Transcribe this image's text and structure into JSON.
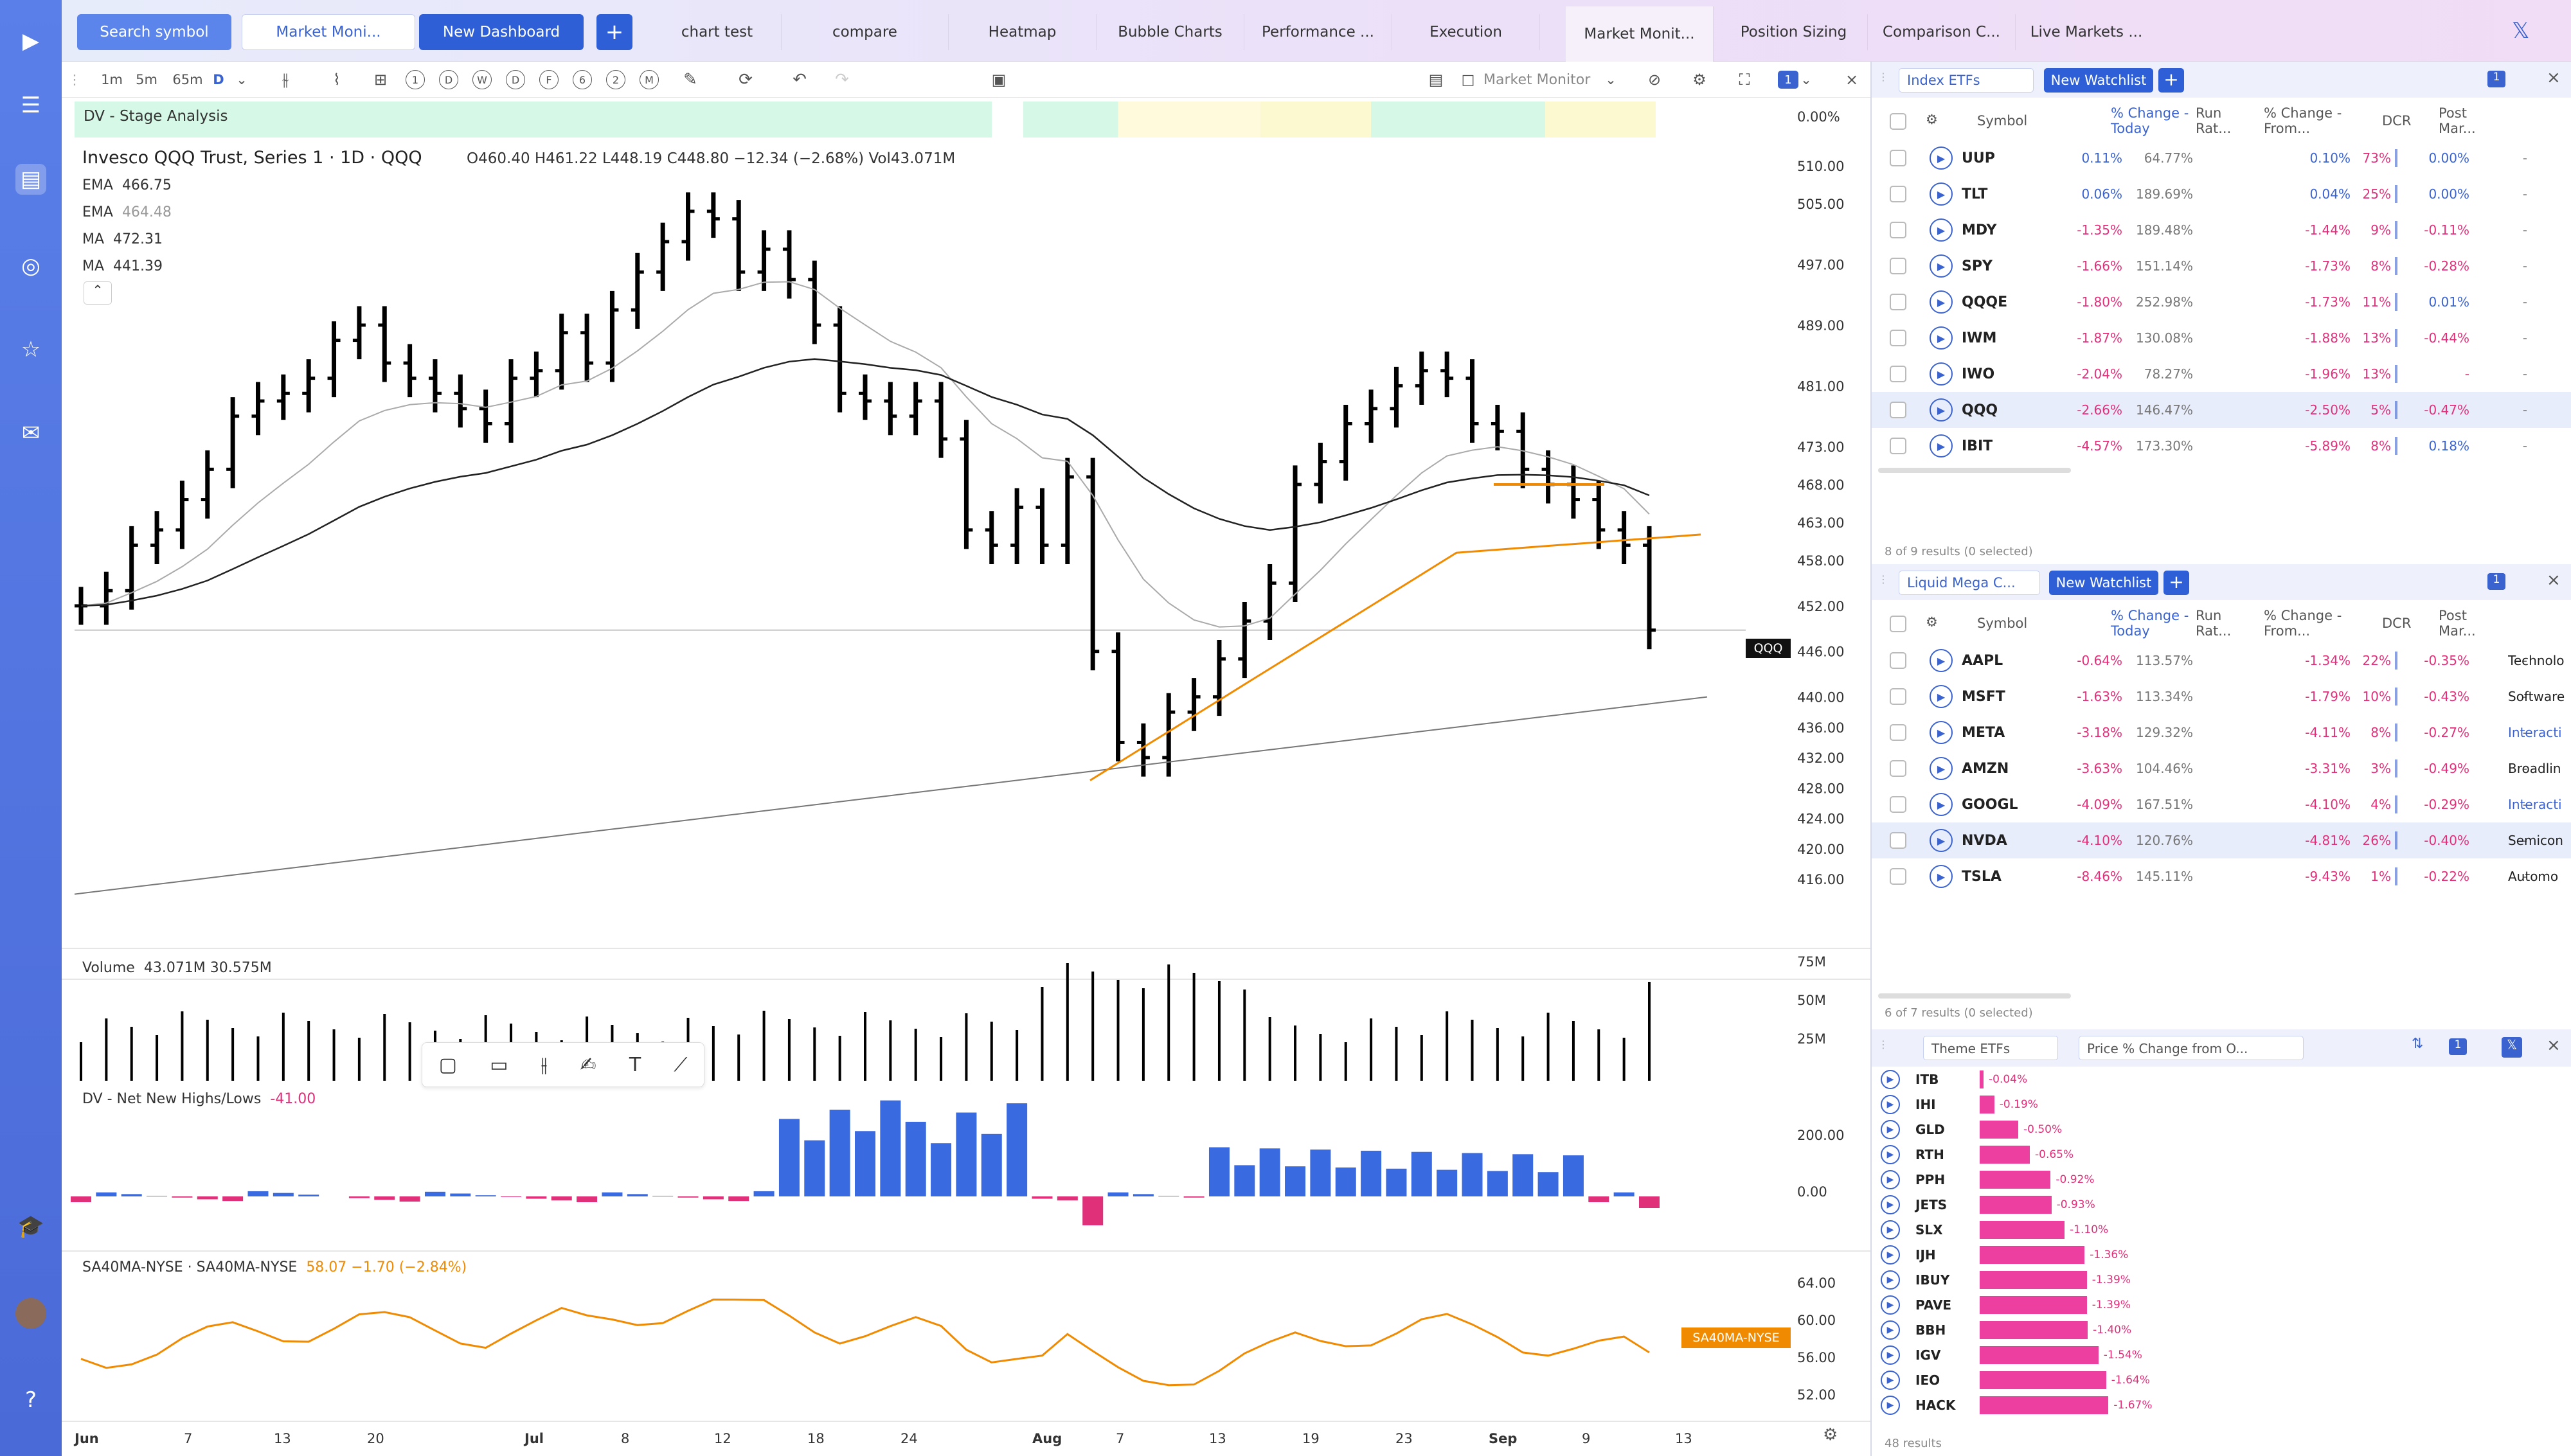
{
  "topbar": {
    "search": "Search symbol",
    "market_monitor": "Market Moni...",
    "new_dashboard": "New Dashboard",
    "plus": "+",
    "tabs": [
      "chart test",
      "compare",
      "Heatmap",
      "Bubble Charts",
      "Performance ...",
      "Execution",
      "Market Monit...",
      "Position Sizing",
      "Comparison C...",
      "Live Markets ..."
    ]
  },
  "toolbar": {
    "intervals": [
      "1m",
      "5m",
      "65m",
      "D"
    ],
    "circles": [
      "1",
      "D",
      "W",
      "D",
      "F",
      "6",
      "2",
      "M"
    ],
    "layout": "Market Monitor",
    "panel_num": "1"
  },
  "stage_label": "DV - Stage Analysis",
  "stage_pct": "0.00%",
  "legend": {
    "title": "Invesco QQQ Trust, Series 1 · 1D · QQQ",
    "ohlc": "O460.40  H461.22  L448.19  C448.80  −12.34 (−2.68%)  Vol43.071M",
    "ma": [
      {
        "name": "EMA",
        "val": "466.75",
        "color": "#555"
      },
      {
        "name": "EMA",
        "val": "464.48",
        "color": "#999"
      },
      {
        "name": "MA",
        "val": "472.31",
        "color": "#555"
      },
      {
        "name": "MA",
        "val": "441.39",
        "color": "#555"
      }
    ]
  },
  "price_axis": [
    "510.00",
    "505.00",
    "497.00",
    "489.00",
    "481.00",
    "473.00",
    "468.00",
    "463.00",
    "458.00",
    "452.00",
    "446.00",
    "440.00",
    "436.00",
    "432.00",
    "428.00",
    "424.00",
    "420.00",
    "416.00"
  ],
  "symbol_tag": "QQQ",
  "volume": {
    "label": "Volume",
    "vals": "43.071M  30.575M",
    "axis": [
      "75M",
      "50M",
      "25M"
    ]
  },
  "nnh": {
    "label": "DV - Net New Highs/Lows",
    "val": "-41.00",
    "axis": [
      "200.00",
      "0.00"
    ]
  },
  "sa40": {
    "label": "SA40MA-NYSE · SA40MA-NYSE",
    "val": "58.07  −1.70 (−2.84%)",
    "axis": [
      "64.00",
      "60.00",
      "56.00",
      "52.00"
    ],
    "tag": "SA40MA-NYSE"
  },
  "xaxis": [
    "Jun",
    "7",
    "13",
    "20",
    "Jul",
    "8",
    "12",
    "18",
    "24",
    "Aug",
    "7",
    "13",
    "19",
    "23",
    "Sep",
    "9",
    "13"
  ],
  "chart_data": {
    "type": "bar",
    "ohlc_close": [
      452,
      454,
      460,
      462,
      466,
      470,
      477,
      479,
      480,
      482,
      487,
      489,
      484,
      482,
      480,
      478,
      476,
      482,
      483,
      488,
      484,
      491,
      496,
      500,
      504,
      503,
      496,
      499,
      495,
      489,
      480,
      479,
      477,
      479,
      474,
      462,
      460,
      465,
      460,
      469,
      446,
      434,
      432,
      438,
      440,
      445,
      450,
      455,
      468,
      471,
      476,
      478,
      481,
      483,
      482,
      476,
      475,
      470,
      468,
      466,
      462,
      460,
      448.8
    ]
  },
  "wl1": {
    "name": "Index ETFs",
    "new": "New Watchlist",
    "num": "1",
    "cols": [
      "Symbol",
      "% Change - Today",
      "Run Rat...",
      "% Change - From...",
      "DCR",
      "Post Mar..."
    ],
    "rows": [
      [
        "UUP",
        "0.11%",
        "64.77%",
        "0.10%",
        "73%",
        "0.00%"
      ],
      [
        "TLT",
        "0.06%",
        "189.69%",
        "0.04%",
        "25%",
        "0.00%"
      ],
      [
        "MDY",
        "-1.35%",
        "189.48%",
        "-1.44%",
        "9%",
        "-0.11%"
      ],
      [
        "SPY",
        "-1.66%",
        "151.14%",
        "-1.73%",
        "8%",
        "-0.28%"
      ],
      [
        "QQQE",
        "-1.80%",
        "252.98%",
        "-1.73%",
        "11%",
        "0.01%"
      ],
      [
        "IWM",
        "-1.87%",
        "130.08%",
        "-1.88%",
        "13%",
        "-0.44%"
      ],
      [
        "IWO",
        "-2.04%",
        "78.27%",
        "-1.96%",
        "13%",
        "-"
      ],
      [
        "QQQ",
        "-2.66%",
        "146.47%",
        "-2.50%",
        "5%",
        "-0.47%"
      ],
      [
        "IBIT",
        "-4.57%",
        "173.30%",
        "-5.89%",
        "8%",
        "0.18%"
      ]
    ],
    "footer": "8 of 9 results (0 selected)"
  },
  "wl2": {
    "name": "Liquid Mega C...",
    "new": "New Watchlist",
    "num": "1",
    "rows": [
      [
        "AAPL",
        "-0.64%",
        "113.57%",
        "-1.34%",
        "22%",
        "-0.35%",
        "Technolo"
      ],
      [
        "MSFT",
        "-1.63%",
        "113.34%",
        "-1.79%",
        "10%",
        "-0.43%",
        "Software"
      ],
      [
        "META",
        "-3.18%",
        "129.32%",
        "-4.11%",
        "8%",
        "-0.27%",
        "Interacti"
      ],
      [
        "AMZN",
        "-3.63%",
        "104.46%",
        "-3.31%",
        "3%",
        "-0.49%",
        "Broadlin"
      ],
      [
        "GOOGL",
        "-4.09%",
        "167.51%",
        "-4.10%",
        "4%",
        "-0.29%",
        "Interacti"
      ],
      [
        "NVDA",
        "-4.10%",
        "120.76%",
        "-4.81%",
        "26%",
        "-0.40%",
        "Semicon"
      ],
      [
        "TSLA",
        "-8.46%",
        "145.11%",
        "-9.43%",
        "1%",
        "-0.22%",
        "Automo"
      ]
    ],
    "footer": "6 of 7 results (0 selected)"
  },
  "theme": {
    "name": "Theme ETFs",
    "metric": "Price % Change from O...",
    "num": "1",
    "footer": "48 results",
    "rows": [
      [
        "ITB",
        "-0.04%"
      ],
      [
        "IHI",
        "-0.19%"
      ],
      [
        "GLD",
        "-0.50%"
      ],
      [
        "RTH",
        "-0.65%"
      ],
      [
        "PPH",
        "-0.92%"
      ],
      [
        "JETS",
        "-0.93%"
      ],
      [
        "SLX",
        "-1.10%"
      ],
      [
        "IJH",
        "-1.36%"
      ],
      [
        "IBUY",
        "-1.39%"
      ],
      [
        "PAVE",
        "-1.39%"
      ],
      [
        "BBH",
        "-1.40%"
      ],
      [
        "IGV",
        "-1.54%"
      ],
      [
        "IEO",
        "-1.64%"
      ],
      [
        "HACK",
        "-1.67%"
      ]
    ]
  }
}
